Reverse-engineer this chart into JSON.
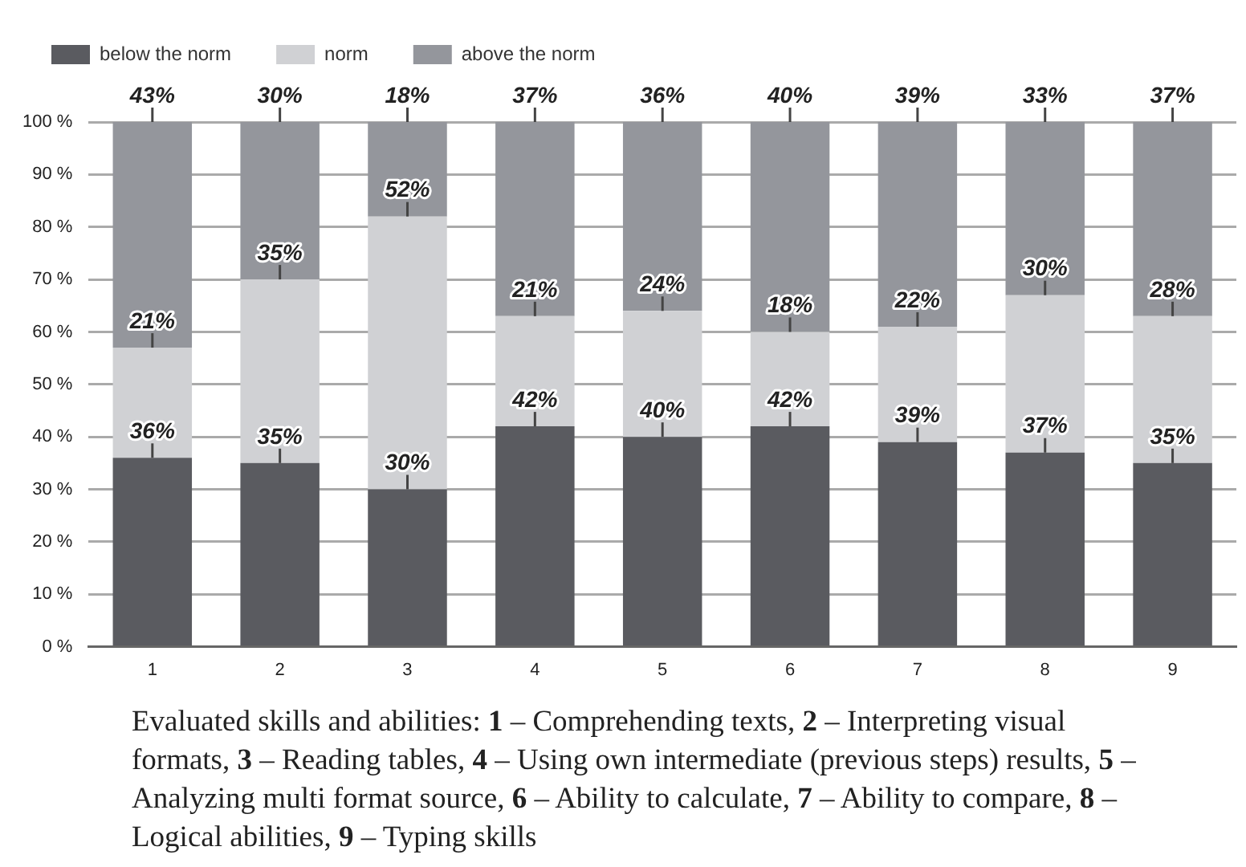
{
  "chart_data": {
    "type": "bar",
    "stacked": true,
    "categories": [
      "1",
      "2",
      "3",
      "4",
      "5",
      "6",
      "7",
      "8",
      "9"
    ],
    "series": [
      {
        "name": "below the norm",
        "color": "#5a5b60",
        "values": [
          36,
          35,
          30,
          42,
          40,
          42,
          39,
          37,
          35
        ],
        "value_labels": [
          "36%",
          "35%",
          "30%",
          "42%",
          "40%",
          "42%",
          "39%",
          "37%",
          "35%"
        ]
      },
      {
        "name": "norm",
        "color": "#d0d1d4",
        "values": [
          21,
          35,
          52,
          21,
          24,
          18,
          22,
          30,
          28
        ],
        "value_labels": [
          "21%",
          "35%",
          "52%",
          "21%",
          "24%",
          "18%",
          "22%",
          "30%",
          "28%"
        ]
      },
      {
        "name": "above the norm",
        "color": "#94969c",
        "values": [
          43,
          30,
          18,
          37,
          36,
          40,
          39,
          33,
          37
        ],
        "value_labels": [
          "43%",
          "30%",
          "18%",
          "37%",
          "36%",
          "40%",
          "39%",
          "33%",
          "37%"
        ]
      }
    ],
    "ylim": [
      0,
      100
    ],
    "yticks": [
      {
        "value": 0,
        "label": "0 %"
      },
      {
        "value": 10,
        "label": "10 %"
      },
      {
        "value": 20,
        "label": "20 %"
      },
      {
        "value": 30,
        "label": "30 %"
      },
      {
        "value": 40,
        "label": "40 %"
      },
      {
        "value": 50,
        "label": "50 %"
      },
      {
        "value": 60,
        "label": "60 %"
      },
      {
        "value": 70,
        "label": "70 %"
      },
      {
        "value": 80,
        "label": "80 %"
      },
      {
        "value": 90,
        "label": "90 %"
      },
      {
        "value": 100,
        "label": "100 %"
      }
    ],
    "grid": "y",
    "legend": "top left",
    "annotations": [
      "Evaluated skills and abilities: 1 – Comprehending texts, 2 – Interpreting visual formats, 3 – Reading tables, 4 – Using own intermediate (previous steps) results, 5 – Analyzing multi format source, 6 – Ability to calculate, 7 – Ability to compare, 8 – Logical abilities, 9 – Typing skills"
    ]
  }
}
